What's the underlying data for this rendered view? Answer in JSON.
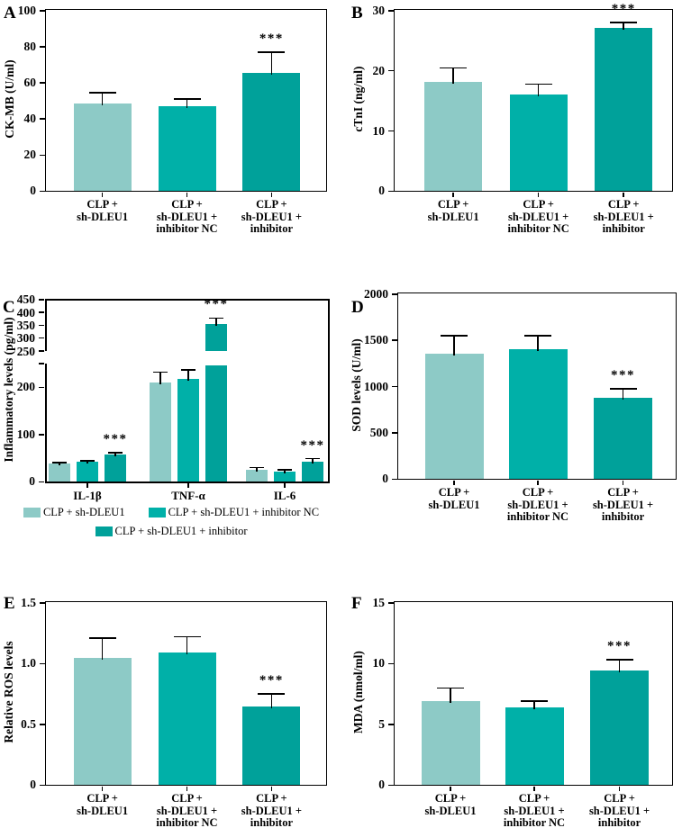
{
  "colors": {
    "series": [
      "#8DCAC6",
      "#00B0A8",
      "#00A19A"
    ],
    "axis": "#000000"
  },
  "significance_marker": "***",
  "legend": {
    "items": [
      "CLP + sh-DLEU1",
      "CLP + sh-DLEU1 + inhibitor NC",
      "CLP + sh-DLEU1 + inhibitor"
    ]
  },
  "chart_data": [
    {
      "panel": "A",
      "type": "bar",
      "ylabel": "CK-MB (U/ml)",
      "ylim": [
        0,
        100
      ],
      "yticks": [
        "0",
        "20",
        "40",
        "60",
        "80",
        "100"
      ],
      "categories": [
        [
          "CLP +",
          "sh-DLEU1"
        ],
        [
          "CLP +",
          "sh-DLEU1 +",
          "inhibitor NC"
        ],
        [
          "CLP +",
          "sh-DLEU1 +",
          "inhibitor"
        ]
      ],
      "series_names": [
        "CLP + sh-DLEU1",
        "CLP + sh-DLEU1 + inhibitor NC",
        "CLP + sh-DLEU1 + inhibitor"
      ],
      "values": [
        48.5,
        47,
        65.5
      ],
      "errors": [
        6,
        4,
        11.5
      ],
      "sig": [
        "",
        "",
        "***"
      ]
    },
    {
      "panel": "B",
      "type": "bar",
      "ylabel": "cTnI (ng/ml)",
      "ylim": [
        0,
        30
      ],
      "yticks": [
        "0",
        "10",
        "20",
        "30"
      ],
      "categories": [
        [
          "CLP +",
          "sh-DLEU1"
        ],
        [
          "CLP +",
          "sh-DLEU1 +",
          "inhibitor NC"
        ],
        [
          "CLP +",
          "sh-DLEU1 +",
          "inhibitor"
        ]
      ],
      "series_names": [
        "CLP + sh-DLEU1",
        "CLP + sh-DLEU1 + inhibitor NC",
        "CLP + sh-DLEU1 + inhibitor"
      ],
      "values": [
        18.2,
        16,
        27.1
      ],
      "errors": [
        2.3,
        1.8,
        0.9
      ],
      "sig": [
        "",
        "",
        "***"
      ]
    },
    {
      "panel": "C",
      "type": "grouped-bar",
      "ylabel": "Inflammatory levels (pg/ml)",
      "axis_break": {
        "lower_range": [
          0,
          250
        ],
        "upper_range": [
          250,
          450
        ]
      },
      "yticks_lower": [
        "0",
        "100",
        "200"
      ],
      "yticks_upper": [
        "250",
        "300",
        "350",
        "400",
        "450"
      ],
      "categories": [
        "IL-1β",
        "TNF-α",
        "IL-6"
      ],
      "series": [
        {
          "name": "CLP + sh-DLEU1",
          "values": [
            38,
            210,
            26
          ],
          "errors": [
            3,
            22,
            4
          ]
        },
        {
          "name": "CLP + sh-DLEU1 + inhibitor NC",
          "values": [
            42,
            217,
            22
          ],
          "errors": [
            3,
            20,
            3
          ]
        },
        {
          "name": "CLP + sh-DLEU1 + inhibitor",
          "values": [
            57,
            355,
            43
          ],
          "errors": [
            5,
            23,
            6
          ]
        }
      ],
      "sig": [
        "***",
        "***",
        "***"
      ],
      "sig_on_series": 2
    },
    {
      "panel": "D",
      "type": "bar",
      "ylabel": "SOD levels (U/ml)",
      "ylim": [
        0,
        2000
      ],
      "yticks": [
        "0",
        "500",
        "1000",
        "1500",
        "2000"
      ],
      "categories": [
        [
          "CLP +",
          "sh-DLEU1"
        ],
        [
          "CLP +",
          "sh-DLEU1 +",
          "inhibitor NC"
        ],
        [
          "CLP +",
          "sh-DLEU1 +",
          "inhibitor"
        ]
      ],
      "series_names": [
        "CLP + sh-DLEU1",
        "CLP + sh-DLEU1 + inhibitor NC",
        "CLP + sh-DLEU1 + inhibitor"
      ],
      "values": [
        1360,
        1400,
        880
      ],
      "errors": [
        190,
        150,
        95
      ],
      "sig": [
        "",
        "",
        "***"
      ]
    },
    {
      "panel": "E",
      "type": "bar",
      "ylabel": "Relative ROS levels",
      "ylim": [
        0,
        1.5
      ],
      "yticks": [
        "0",
        "0.5",
        "1.0",
        "1.5"
      ],
      "categories": [
        [
          "CLP +",
          "sh-DLEU1"
        ],
        [
          "CLP +",
          "sh-DLEU1 +",
          "inhibitor NC"
        ],
        [
          "CLP +",
          "sh-DLEU1 +",
          "inhibitor"
        ]
      ],
      "series_names": [
        "CLP + sh-DLEU1",
        "CLP + sh-DLEU1 + inhibitor NC",
        "CLP + sh-DLEU1 + inhibitor"
      ],
      "values": [
        1.05,
        1.09,
        0.65
      ],
      "errors": [
        0.16,
        0.13,
        0.1
      ],
      "sig": [
        "",
        "",
        "***"
      ]
    },
    {
      "panel": "F",
      "type": "bar",
      "ylabel": "MDA (nmol/ml)",
      "ylim": [
        0,
        15
      ],
      "yticks": [
        "0",
        "5",
        "10",
        "15"
      ],
      "categories": [
        [
          "CLP +",
          "sh-DLEU1"
        ],
        [
          "CLP +",
          "sh-DLEU1 +",
          "inhibitor NC"
        ],
        [
          "CLP +",
          "sh-DLEU1 +",
          "inhibitor"
        ]
      ],
      "series_names": [
        "CLP + sh-DLEU1",
        "CLP + sh-DLEU1 + inhibitor NC",
        "CLP + sh-DLEU1 + inhibitor"
      ],
      "values": [
        6.9,
        6.4,
        9.4
      ],
      "errors": [
        1.1,
        0.5,
        0.9
      ],
      "sig": [
        "",
        "",
        "***"
      ]
    }
  ]
}
